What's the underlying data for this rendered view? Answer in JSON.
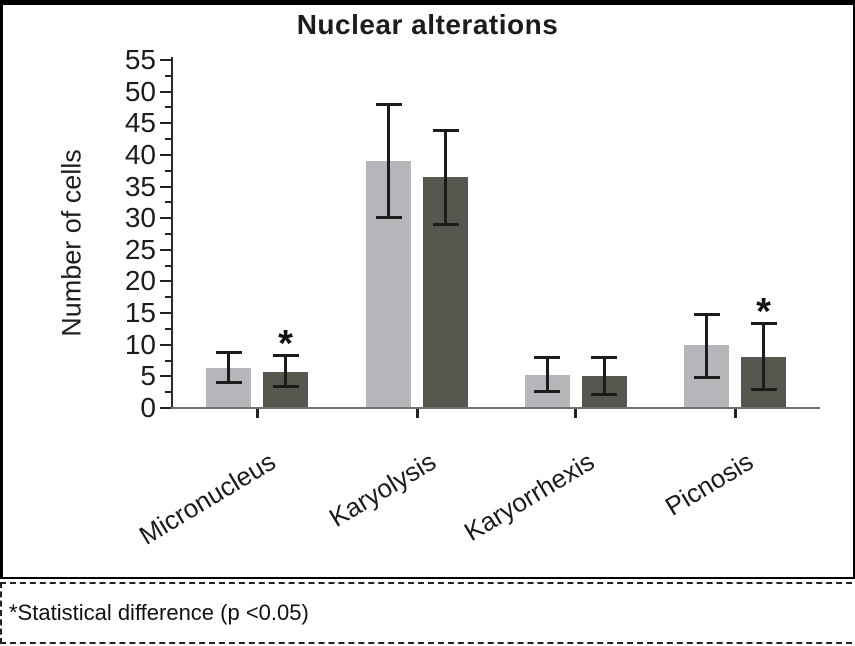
{
  "page": {
    "background": "#ffffff"
  },
  "chart_data": {
    "type": "bar",
    "title": "Nuclear alterations",
    "xlabel": "",
    "ylabel": "Number of cells",
    "ylim": [
      0,
      55
    ],
    "ytick_step": 5,
    "yticks": [
      0,
      5,
      10,
      15,
      20,
      25,
      30,
      35,
      40,
      45,
      50,
      55
    ],
    "minor_tick_step": 2.5,
    "grid": false,
    "legend": "none",
    "categories": [
      "Micronucleus",
      "Karyolysis",
      "Karyorrhexis",
      "Picnosis"
    ],
    "series": [
      {
        "name": "light gray bars",
        "color": "#b5b6ba",
        "values": [
          6.4,
          39.0,
          5.2,
          9.9
        ],
        "err_low": [
          4.0,
          30.0,
          2.6,
          4.7
        ],
        "err_high": [
          8.9,
          48.0,
          8.1,
          14.8
        ],
        "significant": [
          false,
          false,
          false,
          false
        ]
      },
      {
        "name": "dark gray bars",
        "color": "#57564f",
        "values": [
          5.7,
          36.5,
          5.1,
          8.1
        ],
        "err_low": [
          3.3,
          29.0,
          2.1,
          2.8
        ],
        "err_high": [
          8.3,
          44.0,
          8.1,
          13.4
        ],
        "significant": [
          true,
          false,
          false,
          true
        ]
      }
    ],
    "significance_marker": "*"
  },
  "caption": {
    "text": "*Statistical difference (p <0.05)"
  },
  "colors": {
    "frame": "#000000",
    "axis": "#2a2a2a",
    "baseline": "#6f6f6f",
    "error_bar": "#1c1c1c",
    "text": "#1f1f1f"
  }
}
